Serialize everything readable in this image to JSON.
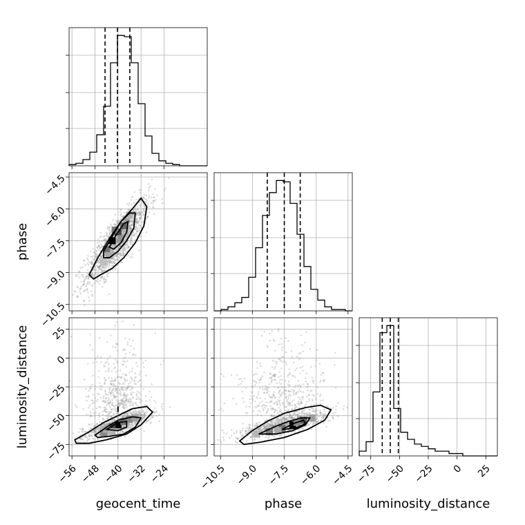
{
  "chart_data": {
    "type": "corner",
    "parameters": [
      {
        "name": "geocent_time",
        "label": "geocent_time",
        "range": [
          -57,
          -9
        ],
        "ticks": [
          -56,
          -48,
          -40,
          -32,
          -24
        ],
        "quantiles": [
          -44.5,
          -40.2,
          -35.9
        ],
        "hist_edges_start": -57,
        "hist_bin_width": 2.4,
        "hist_counts": [
          1,
          2,
          5,
          11,
          25,
          48,
          83,
          105,
          104,
          83,
          50,
          24,
          10,
          4,
          2,
          1,
          0,
          0,
          0,
          0
        ]
      },
      {
        "name": "phase",
        "label": "phase",
        "range": [
          -10.8,
          -4.3
        ],
        "ticks": [
          -10.5,
          -9.0,
          -7.5,
          -6.0,
          -4.5
        ],
        "tick_labels": [
          "−10.5",
          "−9.0",
          "−7.5",
          "−6.0",
          "−4.5"
        ],
        "quantiles": [
          -8.3,
          -7.5,
          -6.75
        ],
        "hist_edges_start": -10.8,
        "hist_bin_width": 0.325,
        "hist_counts": [
          0,
          1,
          3,
          6,
          10,
          25,
          47,
          71,
          88,
          97,
          96,
          80,
          57,
          33,
          16,
          8,
          3,
          1,
          1,
          0
        ]
      },
      {
        "name": "luminosity_distance",
        "label": "luminosity_distance",
        "range": [
          -85,
          35
        ],
        "ticks": [
          -75,
          -50,
          -25,
          0,
          25
        ],
        "quantiles": [
          -65,
          -58,
          -51
        ],
        "hist_edges_start": -85,
        "hist_bin_width": 6,
        "hist_counts": [
          2,
          6,
          27,
          52,
          55,
          20,
          10,
          7,
          5,
          4,
          3,
          2,
          2,
          1,
          1,
          0,
          0,
          0,
          0,
          0
        ]
      }
    ],
    "pairs": [
      {
        "x": "geocent_time",
        "y": "phase",
        "contours": [
          [
            [
              -50,
              -9.1
            ],
            [
              -47,
              -8.3
            ],
            [
              -43,
              -7.4
            ],
            [
              -39,
              -6.6
            ],
            [
              -35,
              -6.0
            ],
            [
              -32,
              -5.5
            ],
            [
              -30,
              -5.9
            ],
            [
              -31,
              -6.8
            ],
            [
              -34,
              -7.6
            ],
            [
              -38,
              -8.3
            ],
            [
              -42,
              -8.8
            ],
            [
              -46,
              -9.1
            ],
            [
              -48.5,
              -9.3
            ]
          ],
          [
            [
              -45,
              -8.0
            ],
            [
              -42,
              -7.3
            ],
            [
              -39,
              -6.6
            ],
            [
              -36,
              -6.2
            ],
            [
              -34,
              -6.2
            ],
            [
              -34.5,
              -6.9
            ],
            [
              -37,
              -7.5
            ],
            [
              -40,
              -8.0
            ],
            [
              -43,
              -8.3
            ],
            [
              -45,
              -8.3
            ]
          ],
          [
            [
              -43,
              -7.8
            ],
            [
              -40.5,
              -7.2
            ],
            [
              -38,
              -6.7
            ],
            [
              -36.5,
              -6.6
            ],
            [
              -37,
              -7.1
            ],
            [
              -39,
              -7.6
            ],
            [
              -41.5,
              -7.9
            ]
          ]
        ],
        "density_bins": [
          [
            -42,
            -7.5,
            1.0
          ],
          [
            -40,
            -7.1,
            0.7
          ],
          [
            -38,
            -6.8,
            0.55
          ],
          [
            -44,
            -7.9,
            0.5
          ],
          [
            -41,
            -7.0,
            0.45
          ],
          [
            -39,
            -7.4,
            0.35
          ],
          [
            -37,
            -6.5,
            0.3
          ],
          [
            -43,
            -8.2,
            0.25
          ],
          [
            -36,
            -6.3,
            0.2
          ],
          [
            -45,
            -8.5,
            0.15
          ]
        ]
      },
      {
        "x": "geocent_time",
        "y": "luminosity_distance",
        "contours": [
          [
            [
              -55,
              -71
            ],
            [
              -50,
              -64
            ],
            [
              -45,
              -56
            ],
            [
              -40,
              -50
            ],
            [
              -35,
              -44
            ],
            [
              -30,
              -42
            ],
            [
              -28,
              -47
            ],
            [
              -32,
              -58
            ],
            [
              -37,
              -66
            ],
            [
              -44,
              -71
            ],
            [
              -50,
              -74
            ],
            [
              -54.5,
              -74
            ]
          ],
          [
            [
              -48,
              -67
            ],
            [
              -44,
              -60
            ],
            [
              -40,
              -54
            ],
            [
              -35,
              -51
            ],
            [
              -32,
              -52
            ],
            [
              -34,
              -60
            ],
            [
              -38,
              -66
            ],
            [
              -43,
              -68
            ],
            [
              -47,
              -69
            ]
          ],
          [
            [
              -44,
              -62
            ],
            [
              -40,
              -56
            ],
            [
              -37,
              -55
            ],
            [
              -37,
              -60
            ],
            [
              -40,
              -63
            ]
          ]
        ],
        "density_bins": [
          [
            -40,
            -58,
            1.0
          ],
          [
            -42,
            -60,
            0.7
          ],
          [
            -38,
            -55,
            0.5
          ],
          [
            -36,
            -53,
            0.4
          ],
          [
            -45,
            -65,
            0.4
          ],
          [
            -34,
            -52,
            0.3
          ],
          [
            -44,
            -62,
            0.25
          ],
          [
            -42,
            -64,
            0.2
          ]
        ],
        "marker": [
          -40,
          -42
        ]
      },
      {
        "x": "phase",
        "y": "luminosity_distance",
        "contours": [
          [
            [
              -9.6,
              -72
            ],
            [
              -9.0,
              -63
            ],
            [
              -8.3,
              -55
            ],
            [
              -7.5,
              -48
            ],
            [
              -6.5,
              -43
            ],
            [
              -5.8,
              -41
            ],
            [
              -5.3,
              -45
            ],
            [
              -5.6,
              -54
            ],
            [
              -6.4,
              -62
            ],
            [
              -7.5,
              -69
            ],
            [
              -8.6,
              -73
            ],
            [
              -9.4,
              -75
            ]
          ],
          [
            [
              -8.7,
              -66
            ],
            [
              -8.0,
              -60
            ],
            [
              -7.3,
              -55
            ],
            [
              -6.7,
              -52
            ],
            [
              -6.3,
              -52
            ],
            [
              -6.5,
              -58
            ],
            [
              -7.1,
              -63
            ],
            [
              -7.9,
              -66
            ]
          ],
          [
            [
              -7.6,
              -62
            ],
            [
              -7.1,
              -57
            ],
            [
              -6.6,
              -54
            ],
            [
              -6.5,
              -57
            ],
            [
              -7.0,
              -61
            ]
          ]
        ],
        "density_bins": [
          [
            -7.1,
            -58,
            1.0
          ],
          [
            -6.6,
            -54,
            0.6
          ],
          [
            -7.6,
            -61,
            0.5
          ],
          [
            -8.2,
            -64,
            0.45
          ],
          [
            -6.9,
            -56,
            0.4
          ],
          [
            -6.2,
            -52,
            0.3
          ],
          [
            -7.8,
            -63,
            0.25
          ],
          [
            -8.8,
            -66,
            0.2
          ]
        ]
      }
    ],
    "grid": true
  }
}
